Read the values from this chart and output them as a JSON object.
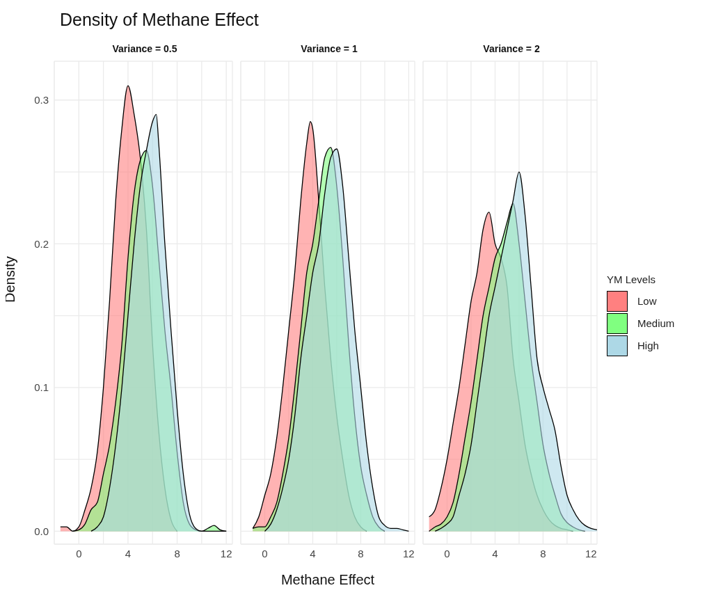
{
  "chart_data": [
    {
      "type": "area",
      "title": "Density of Methane Effect",
      "subtitle": "Variance = 0.5",
      "ylabel": "Density",
      "legend": "right",
      "legend_title": "YM Levels",
      "xlim": [
        -2,
        12.5
      ],
      "xticks": [
        {
          "value": -2,
          "label": null
        },
        0,
        {
          "value": 2,
          "label": null
        },
        4,
        {
          "value": 6,
          "label": null
        },
        8,
        {
          "value": 10,
          "label": null
        },
        12
      ],
      "ylim": [
        -0.009,
        0.327
      ],
      "yticks": [
        {
          "value": 0,
          "label": "0.0"
        },
        {
          "value": 0.05,
          "label": null
        },
        0.1,
        {
          "value": 0.15,
          "label": null
        },
        0.2,
        {
          "value": 0.25,
          "label": null
        },
        0.3
      ],
      "grid": true,
      "series": [
        {
          "name": "Low",
          "color": "#ff8080",
          "x": [
            -1.5,
            -1,
            -0.5,
            0,
            0.5,
            1,
            1.5,
            2,
            2.5,
            3,
            3.5,
            4,
            4.5,
            5,
            5.5,
            6,
            6.5,
            7,
            7.5,
            8
          ],
          "values": [
            0.003,
            0.003,
            0,
            0.003,
            0.015,
            0.03,
            0.055,
            0.1,
            0.16,
            0.23,
            0.28,
            0.31,
            0.29,
            0.26,
            0.21,
            0.13,
            0.07,
            0.03,
            0.008,
            0
          ]
        },
        {
          "name": "Medium",
          "color": "#80ff80",
          "x": [
            -0.5,
            0,
            0.5,
            1,
            1.5,
            2,
            2.5,
            3,
            3.5,
            4,
            4.5,
            5,
            5.5,
            6,
            6.5,
            7,
            7.5,
            8,
            8.5,
            9,
            9.5,
            10,
            10.5,
            11,
            11.5,
            12
          ],
          "values": [
            0,
            0.001,
            0.005,
            0.015,
            0.02,
            0.04,
            0.06,
            0.09,
            0.13,
            0.19,
            0.235,
            0.258,
            0.265,
            0.24,
            0.19,
            0.14,
            0.1,
            0.055,
            0.02,
            0.005,
            0.001,
            0,
            0.002,
            0.004,
            0.001,
            0
          ]
        },
        {
          "name": "High",
          "color": "#add8e6",
          "x": [
            1,
            1.5,
            2,
            2.5,
            3,
            3.5,
            4,
            4.5,
            5,
            5.5,
            6,
            6.3,
            6.5,
            7,
            7.5,
            8,
            8.5,
            9,
            9.5,
            10,
            12
          ],
          "values": [
            0,
            0.003,
            0.01,
            0.03,
            0.06,
            0.1,
            0.15,
            0.2,
            0.24,
            0.265,
            0.285,
            0.29,
            0.27,
            0.2,
            0.14,
            0.085,
            0.04,
            0.012,
            0.002,
            0,
            0
          ]
        }
      ]
    },
    {
      "type": "area",
      "subtitle": "Variance = 1",
      "xlabel": "Methane Effect",
      "tick_labels": "x",
      "xlim": [
        -2,
        12.5
      ],
      "xticks": [
        {
          "value": -2,
          "label": null
        },
        0,
        {
          "value": 2,
          "label": null
        },
        4,
        {
          "value": 6,
          "label": null
        },
        8,
        {
          "value": 10,
          "label": null
        },
        12
      ],
      "ylim": [
        -0.009,
        0.327
      ],
      "yticks": [
        0,
        0.05,
        0.1,
        0.15,
        0.2,
        0.25,
        0.3
      ],
      "grid": true,
      "series": [
        {
          "color": "#ff8080",
          "x": [
            -1,
            -0.5,
            0,
            0.5,
            1,
            1.5,
            2,
            2.5,
            3,
            3.5,
            3.8,
            4,
            4.5,
            5,
            5.5,
            6,
            6.5,
            7,
            7.5,
            8,
            8.5
          ],
          "values": [
            0.002,
            0.01,
            0.025,
            0.04,
            0.065,
            0.1,
            0.14,
            0.18,
            0.23,
            0.27,
            0.285,
            0.28,
            0.23,
            0.17,
            0.12,
            0.08,
            0.05,
            0.025,
            0.01,
            0.003,
            0
          ]
        },
        {
          "color": "#80ff80",
          "x": [
            -1,
            -0.5,
            0,
            0.5,
            1,
            1.5,
            2,
            2.5,
            3,
            3.5,
            4,
            4.5,
            5,
            5.5,
            6,
            6.5,
            7,
            7.5,
            8,
            8.5,
            9,
            9.5,
            10
          ],
          "values": [
            0.002,
            0.003,
            0.003,
            0.01,
            0.02,
            0.04,
            0.065,
            0.1,
            0.14,
            0.18,
            0.2,
            0.23,
            0.26,
            0.267,
            0.24,
            0.19,
            0.13,
            0.08,
            0.045,
            0.025,
            0.01,
            0.003,
            0
          ]
        },
        {
          "color": "#add8e6",
          "x": [
            0,
            0.5,
            1,
            1.5,
            2,
            2.5,
            3,
            3.5,
            4,
            4.5,
            5,
            5.5,
            6,
            6.5,
            7,
            7.5,
            8,
            8.5,
            9,
            9.5,
            10,
            10.5,
            11,
            11.5,
            12
          ],
          "values": [
            0,
            0.005,
            0.015,
            0.03,
            0.05,
            0.08,
            0.12,
            0.15,
            0.18,
            0.2,
            0.235,
            0.26,
            0.266,
            0.24,
            0.19,
            0.14,
            0.1,
            0.06,
            0.03,
            0.01,
            0.004,
            0.002,
            0.002,
            0.001,
            0
          ]
        }
      ]
    },
    {
      "type": "area",
      "subtitle": "Variance = 2",
      "tick_labels": "x",
      "xlim": [
        -2,
        12.5
      ],
      "xticks": [
        {
          "value": -2,
          "label": null
        },
        0,
        {
          "value": 2,
          "label": null
        },
        4,
        {
          "value": 6,
          "label": null
        },
        8,
        {
          "value": 10,
          "label": null
        },
        12
      ],
      "ylim": [
        -0.009,
        0.327
      ],
      "yticks": [
        0,
        0.05,
        0.1,
        0.15,
        0.2,
        0.25,
        0.3
      ],
      "grid": true,
      "series": [
        {
          "color": "#ff8080",
          "x": [
            -1.5,
            -1,
            -0.5,
            0,
            0.5,
            1,
            1.5,
            2,
            2.5,
            3,
            3.5,
            4,
            4.5,
            5,
            5.5,
            6,
            6.5,
            7,
            7.5,
            8,
            8.5,
            9,
            9.5,
            10,
            10.5
          ],
          "values": [
            0.01,
            0.015,
            0.03,
            0.05,
            0.075,
            0.1,
            0.13,
            0.16,
            0.18,
            0.21,
            0.222,
            0.2,
            0.19,
            0.17,
            0.12,
            0.09,
            0.06,
            0.04,
            0.025,
            0.015,
            0.008,
            0.004,
            0.002,
            0.001,
            0
          ]
        },
        {
          "color": "#80ff80",
          "x": [
            -1.5,
            -1,
            -0.5,
            0,
            0.5,
            1,
            1.5,
            2,
            2.5,
            3,
            3.5,
            4,
            4.5,
            5,
            5.5,
            6,
            6.5,
            7,
            7.5,
            8,
            8.5,
            9,
            9.5,
            10,
            10.5,
            11,
            11.5
          ],
          "values": [
            0,
            0.003,
            0.005,
            0.01,
            0.02,
            0.04,
            0.065,
            0.09,
            0.12,
            0.15,
            0.17,
            0.19,
            0.2,
            0.215,
            0.228,
            0.2,
            0.16,
            0.12,
            0.09,
            0.06,
            0.04,
            0.025,
            0.012,
            0.006,
            0.003,
            0.001,
            0
          ]
        },
        {
          "color": "#add8e6",
          "x": [
            -1,
            -0.5,
            0,
            0.5,
            1,
            1.5,
            2,
            2.5,
            3,
            3.5,
            4,
            4.5,
            5,
            5.5,
            6,
            6.5,
            7,
            7.5,
            8,
            8.5,
            9,
            9.5,
            10,
            10.5,
            11,
            11.5,
            12,
            12.5
          ],
          "values": [
            0,
            0.002,
            0.005,
            0.01,
            0.025,
            0.04,
            0.06,
            0.09,
            0.12,
            0.15,
            0.17,
            0.19,
            0.21,
            0.23,
            0.25,
            0.22,
            0.17,
            0.12,
            0.1,
            0.085,
            0.07,
            0.045,
            0.025,
            0.015,
            0.008,
            0.004,
            0.002,
            0.001
          ]
        }
      ]
    }
  ]
}
